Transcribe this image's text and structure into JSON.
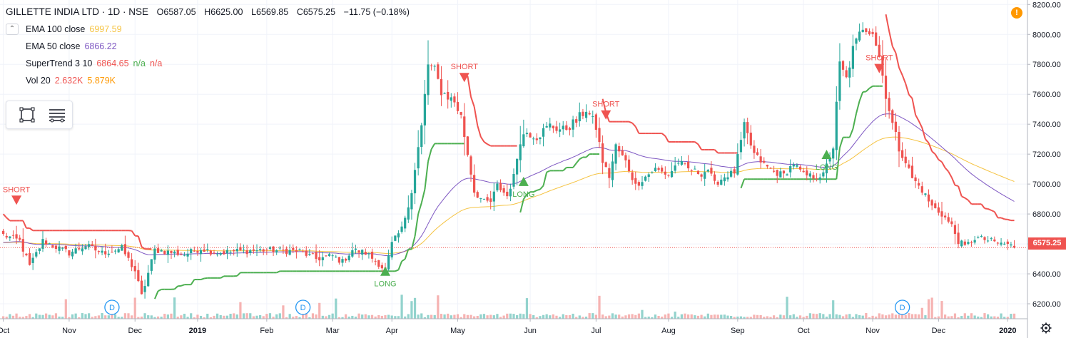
{
  "header": {
    "symbol": "GILLETTE INDIA LTD · 1D · NSE",
    "open": "O6587.05",
    "high": "H6625.00",
    "low": "L6569.85",
    "close": "C6575.25",
    "change": "−11.75 (−0.18%)"
  },
  "legend": [
    {
      "name": "EMA 100 close",
      "value": "6997.59",
      "color": "#f5c342"
    },
    {
      "name": "EMA 50 close",
      "value": "6866.22",
      "color": "#7e57c2"
    },
    {
      "name": "SuperTrend 3 10",
      "value": "6864.65",
      "value2": "n/a",
      "value3": "n/a",
      "color": "#ef5350",
      "color2": "#4caf50",
      "color3": "#ef5350"
    },
    {
      "name": "Vol 20",
      "value": "2.632K",
      "value2": "5.879K",
      "color": "#ef5350",
      "color2": "#ff9800"
    }
  ],
  "last_price_label": "6575.25",
  "alert_icon": "!",
  "colors": {
    "up": "#26a69a",
    "down": "#ef5350",
    "ema100": "#f5c342",
    "ema50": "#7e57c2",
    "st_up": "#4caf50",
    "st_down": "#ef5350"
  },
  "chart_data": {
    "type": "candlestick",
    "yaxis_ticks": [
      "8200.00",
      "8000.00",
      "7800.00",
      "7600.00",
      "7400.00",
      "7200.00",
      "7000.00",
      "6800.00",
      "6600.00",
      "6400.00",
      "6200.00"
    ],
    "ylim": [
      6100,
      8230
    ],
    "xaxis_ticks": [
      {
        "label": "Oct",
        "x": 0
      },
      {
        "label": "Nov",
        "x": 20
      },
      {
        "label": "Dec",
        "x": 40
      },
      {
        "label": "2019",
        "x": 59
      },
      {
        "label": "Feb",
        "x": 80
      },
      {
        "label": "Mar",
        "x": 100
      },
      {
        "label": "Apr",
        "x": 118
      },
      {
        "label": "May",
        "x": 138
      },
      {
        "label": "Jun",
        "x": 160
      },
      {
        "label": "Jul",
        "x": 180
      },
      {
        "label": "Aug",
        "x": 202
      },
      {
        "label": "Sep",
        "x": 223
      },
      {
        "label": "Oct",
        "x": 243
      },
      {
        "label": "Nov",
        "x": 264
      },
      {
        "label": "Dec",
        "x": 284
      },
      {
        "label": "2020",
        "x": 305
      }
    ],
    "xlim": [
      -1,
      311
    ],
    "close_anchors": [
      [
        0,
        6660
      ],
      [
        5,
        6620
      ],
      [
        8,
        6450
      ],
      [
        12,
        6620
      ],
      [
        20,
        6540
      ],
      [
        25,
        6590
      ],
      [
        30,
        6540
      ],
      [
        36,
        6570
      ],
      [
        40,
        6420
      ],
      [
        42,
        6250
      ],
      [
        46,
        6560
      ],
      [
        55,
        6530
      ],
      [
        60,
        6570
      ],
      [
        65,
        6540
      ],
      [
        70,
        6550
      ],
      [
        80,
        6560
      ],
      [
        90,
        6550
      ],
      [
        95,
        6500
      ],
      [
        100,
        6520
      ],
      [
        103,
        6480
      ],
      [
        106,
        6560
      ],
      [
        110,
        6540
      ],
      [
        114,
        6470
      ],
      [
        116,
        6420
      ],
      [
        118,
        6600
      ],
      [
        121,
        6700
      ],
      [
        124,
        6950
      ],
      [
        127,
        7380
      ],
      [
        129,
        7800
      ],
      [
        131,
        7760
      ],
      [
        133,
        7620
      ],
      [
        137,
        7550
      ],
      [
        139,
        7450
      ],
      [
        141,
        7200
      ],
      [
        143,
        6950
      ],
      [
        146,
        6880
      ],
      [
        148,
        6880
      ],
      [
        150,
        6990
      ],
      [
        153,
        6920
      ],
      [
        155,
        7050
      ],
      [
        157,
        7300
      ],
      [
        159,
        7350
      ],
      [
        162,
        7320
      ],
      [
        166,
        7390
      ],
      [
        170,
        7360
      ],
      [
        174,
        7420
      ],
      [
        177,
        7500
      ],
      [
        180,
        7380
      ],
      [
        182,
        7150
      ],
      [
        184,
        7050
      ],
      [
        186,
        7250
      ],
      [
        189,
        7150
      ],
      [
        192,
        6990
      ],
      [
        195,
        7050
      ],
      [
        198,
        7100
      ],
      [
        202,
        7060
      ],
      [
        205,
        7150
      ],
      [
        208,
        7100
      ],
      [
        212,
        7070
      ],
      [
        214,
        7100
      ],
      [
        216,
        7000
      ],
      [
        219,
        7050
      ],
      [
        222,
        7080
      ],
      [
        225,
        7380
      ],
      [
        228,
        7200
      ],
      [
        231,
        7130
      ],
      [
        234,
        7080
      ],
      [
        237,
        7060
      ],
      [
        240,
        7140
      ],
      [
        243,
        7060
      ],
      [
        246,
        7050
      ],
      [
        249,
        7060
      ],
      [
        252,
        7250
      ],
      [
        254,
        7800
      ],
      [
        256,
        7700
      ],
      [
        258,
        7900
      ],
      [
        261,
        8050
      ],
      [
        264,
        8020
      ],
      [
        266,
        7850
      ],
      [
        268,
        7600
      ],
      [
        270,
        7400
      ],
      [
        272,
        7240
      ],
      [
        274,
        7150
      ],
      [
        276,
        7040
      ],
      [
        279,
        6960
      ],
      [
        282,
        6850
      ],
      [
        285,
        6800
      ],
      [
        288,
        6720
      ],
      [
        290,
        6620
      ],
      [
        292,
        6580
      ],
      [
        295,
        6640
      ],
      [
        298,
        6630
      ],
      [
        301,
        6610
      ],
      [
        303,
        6600
      ],
      [
        305,
        6600
      ],
      [
        307,
        6575.25
      ]
    ],
    "signals": [
      {
        "type": "SHORT",
        "x": 4,
        "y": 6880
      },
      {
        "type": "LONG",
        "x": 116,
        "y": 6430
      },
      {
        "type": "SHORT",
        "x": 140,
        "y": 7700
      },
      {
        "type": "LONG",
        "x": 158,
        "y": 7030
      },
      {
        "type": "SHORT",
        "x": 183,
        "y": 7450
      },
      {
        "type": "LONG",
        "x": 250,
        "y": 7210
      },
      {
        "type": "SHORT",
        "x": 266,
        "y": 7760
      }
    ],
    "dividend_markers": [
      {
        "label": "D",
        "x": 33
      },
      {
        "label": "D",
        "x": 91
      },
      {
        "label": "D",
        "x": 273
      }
    ],
    "last_price": 6575.25
  }
}
